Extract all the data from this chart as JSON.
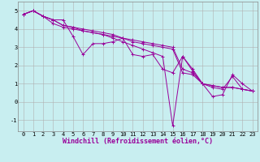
{
  "xlabel": "Windchill (Refroidissement éolien,°C)",
  "background_color": "#c8eef0",
  "grid_color": "#b0b0b0",
  "line_color": "#990099",
  "xlim": [
    -0.5,
    23.5
  ],
  "ylim": [
    -1.6,
    5.5
  ],
  "xticks": [
    0,
    1,
    2,
    3,
    4,
    5,
    6,
    7,
    8,
    9,
    10,
    11,
    12,
    13,
    14,
    15,
    16,
    17,
    18,
    19,
    20,
    21,
    22,
    23
  ],
  "yticks": [
    -1,
    0,
    1,
    2,
    3,
    4,
    5
  ],
  "series": [
    [
      4.8,
      5.0,
      4.7,
      4.5,
      4.5,
      3.6,
      2.6,
      3.2,
      3.2,
      3.3,
      3.5,
      2.6,
      2.5,
      2.6,
      1.8,
      1.6,
      2.5,
      1.8,
      1.0,
      0.3,
      0.4,
      1.5,
      1.0,
      0.6
    ],
    [
      4.8,
      5.0,
      4.7,
      4.5,
      4.2,
      4.1,
      4.0,
      3.9,
      3.8,
      3.7,
      3.5,
      3.4,
      3.3,
      3.2,
      3.1,
      3.0,
      1.8,
      1.6,
      1.0,
      0.9,
      0.8,
      0.8,
      0.7,
      0.6
    ],
    [
      4.8,
      5.0,
      4.7,
      4.5,
      4.2,
      4.1,
      3.9,
      3.8,
      3.7,
      3.6,
      3.5,
      3.3,
      3.2,
      3.1,
      3.0,
      2.9,
      1.6,
      1.5,
      1.0,
      0.9,
      0.8,
      0.8,
      0.7,
      0.6
    ],
    [
      4.8,
      5.0,
      4.7,
      4.3,
      4.1,
      4.0,
      3.9,
      3.8,
      3.7,
      3.5,
      3.3,
      3.1,
      2.9,
      2.7,
      2.5,
      -1.3,
      2.5,
      1.7,
      1.0,
      0.8,
      0.7,
      1.4,
      0.7,
      0.6
    ]
  ],
  "marker": "+",
  "markersize": 3,
  "linewidth": 0.7,
  "tick_fontsize": 5,
  "label_fontsize": 6
}
